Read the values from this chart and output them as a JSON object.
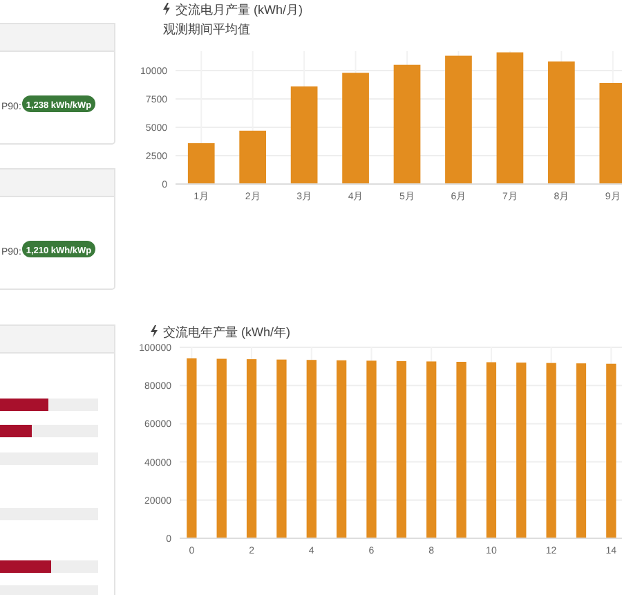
{
  "chart_data": [
    {
      "type": "bar",
      "title": "交流电月产量 (kWh/月)",
      "subtitle": "观测期间平均值",
      "categories": [
        "1月",
        "2月",
        "3月",
        "4月",
        "5月",
        "6月",
        "7月",
        "8月",
        "9月"
      ],
      "values": [
        3600,
        4700,
        8600,
        9800,
        10500,
        11300,
        11600,
        10800,
        8900
      ],
      "color": "#e38d1f",
      "ylim": [
        0,
        11700
      ],
      "yticks": [
        0,
        2500,
        5000,
        7500,
        10000
      ],
      "grid": true
    },
    {
      "type": "bar",
      "title": "交流电年产量 (kWh/年)",
      "x": [
        0,
        1,
        2,
        3,
        4,
        5,
        6,
        7,
        8,
        9,
        10,
        11,
        12,
        13,
        14
      ],
      "values": [
        94200,
        94000,
        93800,
        93600,
        93400,
        93200,
        93000,
        92800,
        92600,
        92400,
        92200,
        92000,
        91800,
        91600,
        91400
      ],
      "color": "#e38d1f",
      "xlim": [
        -0.4,
        14.5
      ],
      "xticks": [
        0,
        2,
        4,
        6,
        8,
        10,
        12,
        14
      ],
      "ylim": [
        0,
        100000
      ],
      "yticks": [
        0,
        20000,
        40000,
        60000,
        80000,
        100000
      ],
      "grid": true
    },
    {
      "type": "other",
      "annotations": [
        "P90:",
        "1,238 kWh/kWp",
        "P90:",
        "1,210 kWh/kWp"
      ]
    }
  ]
}
